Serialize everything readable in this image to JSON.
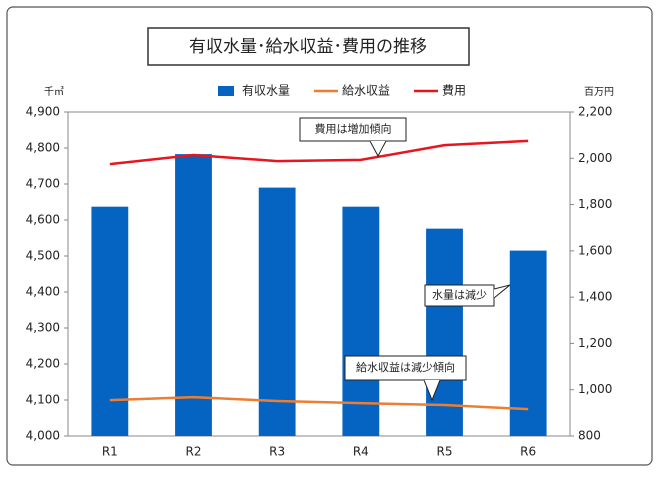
{
  "chart_data": {
    "type": "bar",
    "title": "有収水量･給水収益･費用の推移",
    "y_unit": "千㎥",
    "y2_unit": "百万円",
    "categories": [
      "R1",
      "R2",
      "R3",
      "R4",
      "R5",
      "R6"
    ],
    "series": [
      {
        "name": "有収水量",
        "type": "bar",
        "color": "#0563c1",
        "values": [
          4637,
          4783,
          4690,
          4637,
          4576,
          4515
        ]
      },
      {
        "name": "給水収益",
        "type": "line",
        "axis": "y2",
        "color": "#ed7d31",
        "values": [
          955,
          968,
          951,
          942,
          934,
          916
        ]
      },
      {
        "name": "費用",
        "type": "line",
        "axis": "y2",
        "color": "#e8141e",
        "values": [
          1975,
          2014,
          1988,
          1993,
          2057,
          2075
        ]
      }
    ],
    "ylim": [
      4000,
      4900
    ],
    "yticks": [
      {
        "value": 4000,
        "label": "4,000"
      },
      {
        "value": 4100,
        "label": "4,100"
      },
      {
        "value": 4200,
        "label": "4,200"
      },
      {
        "value": 4300,
        "label": "4,300"
      },
      {
        "value": 4400,
        "label": "4,400"
      },
      {
        "value": 4500,
        "label": "4,500"
      },
      {
        "value": 4600,
        "label": "4,600"
      },
      {
        "value": 4700,
        "label": "4,700"
      },
      {
        "value": 4800,
        "label": "4,800"
      },
      {
        "value": 4900,
        "label": "4,900"
      }
    ],
    "y2lim": [
      800,
      2200
    ],
    "y2ticks": [
      800,
      {
        "value": 1000,
        "label": "1,000"
      },
      {
        "value": 1200,
        "label": "1,200"
      },
      {
        "value": 1400,
        "label": "1,400"
      },
      {
        "value": 1600,
        "label": "1,600"
      },
      {
        "value": 1800,
        "label": "1,800"
      },
      {
        "value": 2000,
        "label": "2,000"
      },
      {
        "value": 2200,
        "label": "2,200"
      }
    ],
    "annotations": [
      "費用は増加傾向",
      "水量は減少",
      "給水収益は減少傾向"
    ],
    "legend": "top"
  }
}
